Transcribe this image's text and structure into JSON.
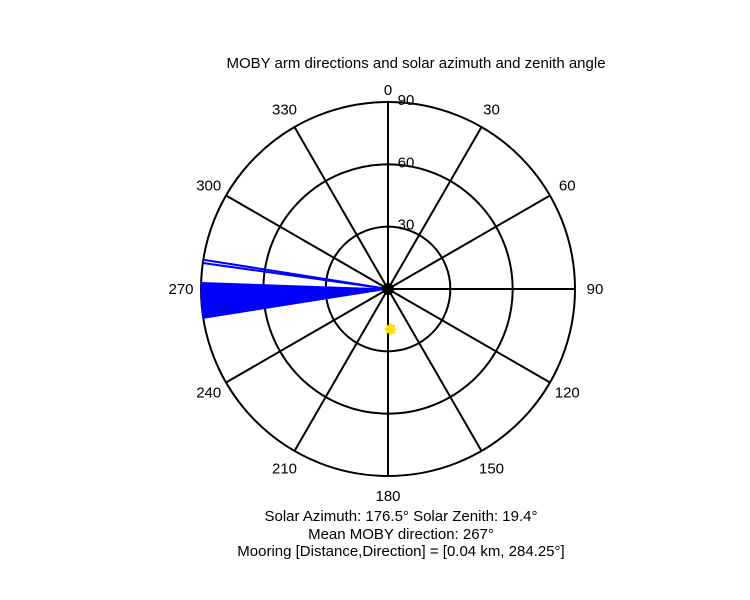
{
  "title": "MOBY arm directions and solar azimuth and zenith angle",
  "footer": {
    "line1": "Solar Azimuth: 176.5°   Solar Zenith: 19.4°",
    "line2": "Mean MOBY direction: 267°",
    "line3": "Mooring [Distance,Direction] = [0.04 km, 284.25°]"
  },
  "chart_data": {
    "type": "polar",
    "angular_ticks": [
      "0",
      "30",
      "60",
      "90",
      "120",
      "150",
      "180",
      "210",
      "240",
      "270",
      "300",
      "330"
    ],
    "angular_tick_values": [
      0,
      30,
      60,
      90,
      120,
      150,
      180,
      210,
      240,
      270,
      300,
      330
    ],
    "radial_ticks": [
      "30",
      "60",
      "90"
    ],
    "radial_tick_values": [
      30,
      60,
      90
    ],
    "radial_range": [
      0,
      90
    ],
    "moby_arm_direction_range": [
      261,
      272
    ],
    "moby_arm_outlier_directions": [
      278,
      279
    ],
    "mean_moby_direction": 267,
    "solar_azimuth": 176.5,
    "solar_zenith": 19.4,
    "colors": {
      "arms": "#0000ff",
      "sun": "#ffdd00",
      "grid": "#000000",
      "center": "#000000"
    }
  }
}
